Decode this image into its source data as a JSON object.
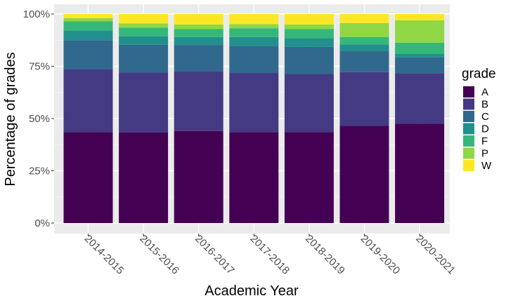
{
  "chart_data": {
    "type": "bar",
    "stacked": true,
    "normalized": true,
    "xlabel": "Academic Year",
    "ylabel": "Percentage of grades",
    "categories": [
      "2014-2015",
      "2015-2016",
      "2016-2017",
      "2017-2018",
      "2018-2019",
      "2019-2020",
      "2020-2021"
    ],
    "ylim": [
      0,
      100
    ],
    "yticks": [
      0,
      25,
      50,
      75,
      100
    ],
    "ytick_labels": [
      "0%",
      "25%",
      "50%",
      "75%",
      "100%"
    ],
    "grid": true,
    "legend": {
      "title": "grade",
      "position": "right"
    },
    "series": [
      {
        "name": "A",
        "color": "#440154",
        "values": [
          43.5,
          43.3,
          44.0,
          43.5,
          43.5,
          46.5,
          47.5
        ]
      },
      {
        "name": "B",
        "color": "#443A83",
        "values": [
          30.0,
          28.7,
          28.5,
          28.3,
          27.8,
          25.7,
          24.2
        ]
      },
      {
        "name": "C",
        "color": "#31688E",
        "values": [
          14.0,
          13.3,
          12.7,
          13.0,
          13.0,
          10.0,
          7.6
        ]
      },
      {
        "name": "D",
        "color": "#21908C",
        "values": [
          4.7,
          4.0,
          3.8,
          4.2,
          4.2,
          3.3,
          1.7
        ]
      },
      {
        "name": "F",
        "color": "#35B779",
        "values": [
          4.3,
          4.2,
          3.8,
          4.2,
          4.3,
          3.5,
          5.3
        ]
      },
      {
        "name": "P",
        "color": "#8FD744",
        "values": [
          1.5,
          2.0,
          2.2,
          2.0,
          2.2,
          6.7,
          10.7
        ]
      },
      {
        "name": "W",
        "color": "#FDE725",
        "values": [
          2.0,
          4.5,
          5.0,
          4.8,
          5.0,
          4.3,
          3.0
        ]
      }
    ]
  }
}
